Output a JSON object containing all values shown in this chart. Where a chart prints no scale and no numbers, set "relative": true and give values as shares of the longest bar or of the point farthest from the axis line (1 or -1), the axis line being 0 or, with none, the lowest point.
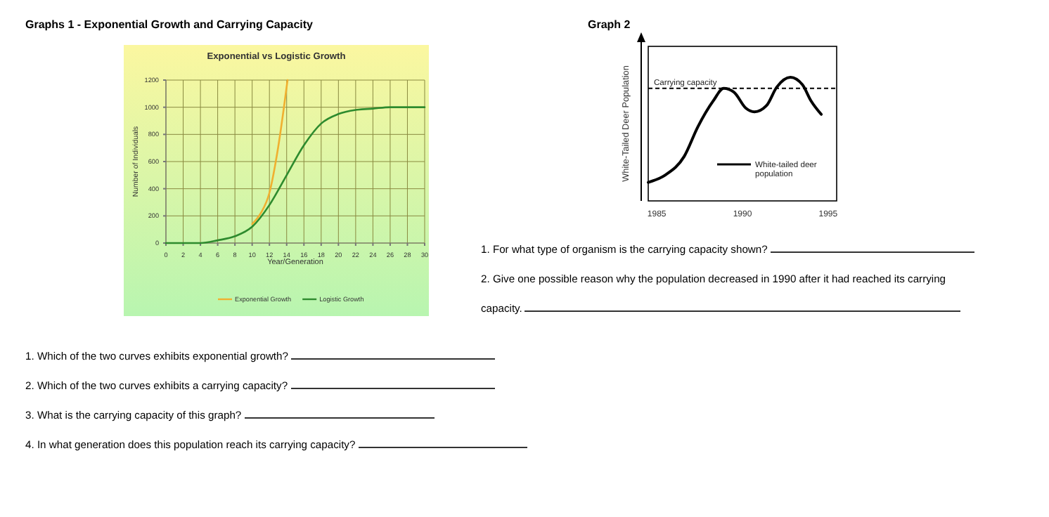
{
  "chart_data": [
    {
      "type": "line",
      "title": "Graphs 1 - Exponential Growth and Carrying Capacity",
      "subtitle": "Exponential vs Logistic Growth",
      "xlabel": "Year/Generation",
      "ylabel": "Number of Individuals",
      "xlim": [
        0,
        30
      ],
      "xticks": [
        0,
        2,
        4,
        6,
        8,
        10,
        12,
        14,
        16,
        18,
        20,
        22,
        24,
        26,
        28,
        30
      ],
      "ylim": [
        0,
        1200
      ],
      "yticks": [
        0,
        200,
        400,
        600,
        800,
        1000,
        1200
      ],
      "grid": true,
      "legend": "bottom",
      "marker": "none",
      "series": [
        {
          "name": "Exponential Growth",
          "color": "#f0b030",
          "x": [
            10,
            11,
            12,
            13,
            14.1
          ],
          "values": [
            140,
            220,
            370,
            700,
            1200
          ]
        },
        {
          "name": "Logistic Growth",
          "color": "#2e8b2e",
          "x": [
            0,
            2,
            4,
            6,
            8,
            10,
            12,
            14,
            16,
            18,
            20,
            22,
            24,
            26,
            28,
            30
          ],
          "values": [
            0,
            0,
            0,
            20,
            50,
            120,
            280,
            500,
            720,
            880,
            950,
            980,
            990,
            1000,
            1000,
            1000
          ]
        }
      ],
      "annotations": [
        "1. Which of the two curves exhibits exponential growth?",
        "2. Which of the two curves exhibits a carrying capacity?",
        "3. What is the carrying capacity of this graph?",
        "4. In what generation does this population reach its carrying capacity?"
      ]
    },
    {
      "type": "line",
      "title": "Graph 2",
      "ylabel": "White-Tailed Deer Population",
      "relative": true,
      "xlim": [
        1984.5,
        1995.5
      ],
      "xticks": [
        1985,
        1990,
        1995
      ],
      "legend": "bottom right",
      "marker": "none",
      "ref_lines": [
        {
          "axis": "y",
          "value": 0.91,
          "label": "Carrying capacity",
          "line_style": "dashed",
          "color": "#000000"
        }
      ],
      "series": [
        {
          "name": "White-tailed deer population",
          "color": "#000000",
          "x": [
            1984.5,
            1985.5,
            1986.6,
            1987.4,
            1988.3,
            1988.9,
            1989.5,
            1990.2,
            1990.7,
            1991.4,
            1992,
            1992.8,
            1993.5,
            1994,
            1994.6
          ],
          "values": [
            0.15,
            0.21,
            0.36,
            0.6,
            0.81,
            0.91,
            0.88,
            0.75,
            0.72,
            0.77,
            0.92,
            1,
            0.94,
            0.81,
            0.7
          ]
        }
      ],
      "annotations": [
        "1. For what type of organism is the carrying capacity shown?",
        "2. Give one possible reason why the population decreased in 1990 after it had reached its carrying capacity."
      ]
    }
  ]
}
